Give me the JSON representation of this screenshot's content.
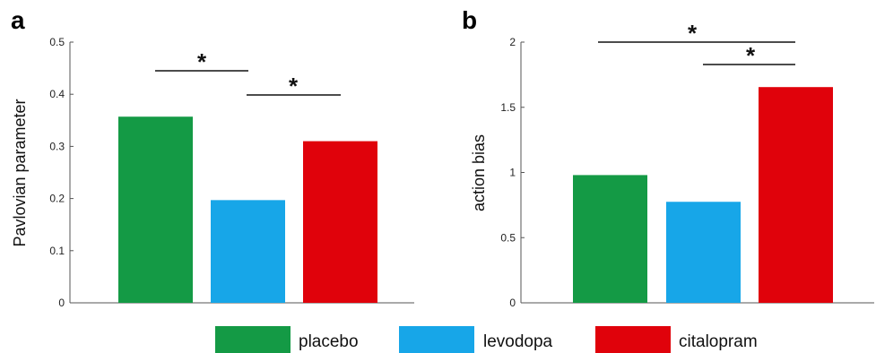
{
  "colors": {
    "placebo": "#149a45",
    "levodopa": "#17a6e8",
    "citalopram": "#e0020b"
  },
  "legend": [
    {
      "label": "placebo",
      "color_key": "placebo"
    },
    {
      "label": "levodopa",
      "color_key": "levodopa"
    },
    {
      "label": "citalopram",
      "color_key": "citalopram"
    }
  ],
  "chart_data": [
    {
      "panel": "a",
      "type": "bar",
      "categories": [
        "placebo",
        "levodopa",
        "citalopram"
      ],
      "values": [
        0.357,
        0.197,
        0.31
      ],
      "ylabel": "Pavlovian parameter",
      "xlabel": "",
      "ylim": [
        0,
        0.5
      ],
      "yticks": [
        0,
        0.1,
        0.2,
        0.3,
        0.4,
        0.5
      ],
      "ytick_labels": [
        "0",
        "0.1",
        "0.2",
        "0.3",
        "0.4",
        "0.5"
      ],
      "grid": false,
      "significance": [
        {
          "between": [
            "placebo",
            "levodopa"
          ],
          "label": "*"
        },
        {
          "between": [
            "levodopa",
            "citalopram"
          ],
          "label": "*"
        }
      ]
    },
    {
      "panel": "b",
      "type": "bar",
      "categories": [
        "placebo",
        "levodopa",
        "citalopram"
      ],
      "values": [
        0.98,
        0.775,
        1.655
      ],
      "ylabel": "action bias",
      "xlabel": "",
      "ylim": [
        0,
        2
      ],
      "yticks": [
        0,
        0.5,
        1,
        1.5,
        2
      ],
      "ytick_labels": [
        "0",
        "0.5",
        "1",
        "1.5",
        "2"
      ],
      "grid": false,
      "significance": [
        {
          "between": [
            "placebo",
            "citalopram"
          ],
          "label": "*"
        },
        {
          "between": [
            "levodopa",
            "citalopram"
          ],
          "label": "*"
        }
      ]
    }
  ]
}
